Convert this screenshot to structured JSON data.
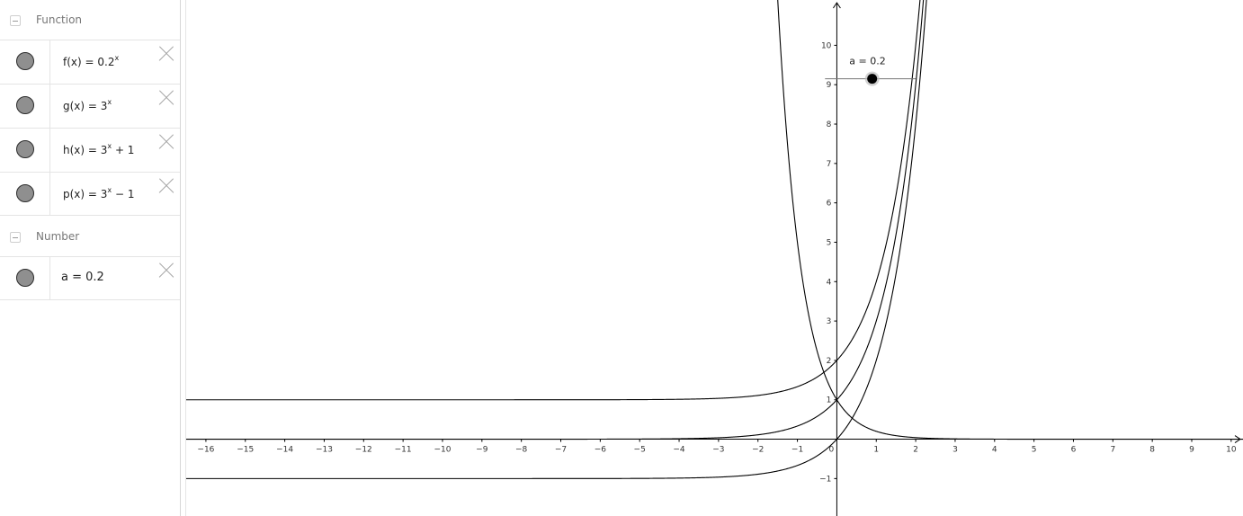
{
  "algebra": {
    "groups": [
      {
        "title": "Function",
        "items": [
          {
            "name": "f(x) = 0.2",
            "exp": "x",
            "tail": ""
          },
          {
            "name": "g(x) = 3",
            "exp": "x",
            "tail": ""
          },
          {
            "name": "h(x) = 3",
            "exp": "x",
            "tail": " + 1"
          },
          {
            "name": "p(x) = 3",
            "exp": "x",
            "tail": " − 1"
          }
        ]
      },
      {
        "title": "Number",
        "items": [
          {
            "name": "a = 0.2"
          }
        ]
      }
    ]
  },
  "graphics": {
    "x_range": [
      -16.5,
      10.3
    ],
    "y_range": [
      -1.95,
      11.15
    ],
    "x_ticks": [
      -16,
      -15,
      -14,
      -13,
      -12,
      -11,
      -10,
      -9,
      -8,
      -7,
      -6,
      -5,
      -4,
      -3,
      -2,
      -1,
      0,
      1,
      2,
      3,
      4,
      5,
      6,
      7,
      8,
      9,
      10
    ],
    "y_ticks": [
      -1,
      1,
      2,
      3,
      4,
      5,
      6,
      7,
      8,
      9,
      10
    ],
    "functions": [
      {
        "name": "f",
        "base": 0.2,
        "shift": 0
      },
      {
        "name": "g",
        "base": 3,
        "shift": 0
      },
      {
        "name": "h",
        "base": 3,
        "shift": 1
      },
      {
        "name": "p",
        "base": 3,
        "shift": -1
      }
    ],
    "slider": {
      "label": "a = 0.2",
      "value": 0.2,
      "min": -5,
      "max": 5,
      "line_x": [
        -0.3,
        2
      ],
      "line_y": 9.15
    },
    "colors": {
      "axis": "#000000",
      "curve": "#000000",
      "slider_point": "#000000"
    }
  }
}
